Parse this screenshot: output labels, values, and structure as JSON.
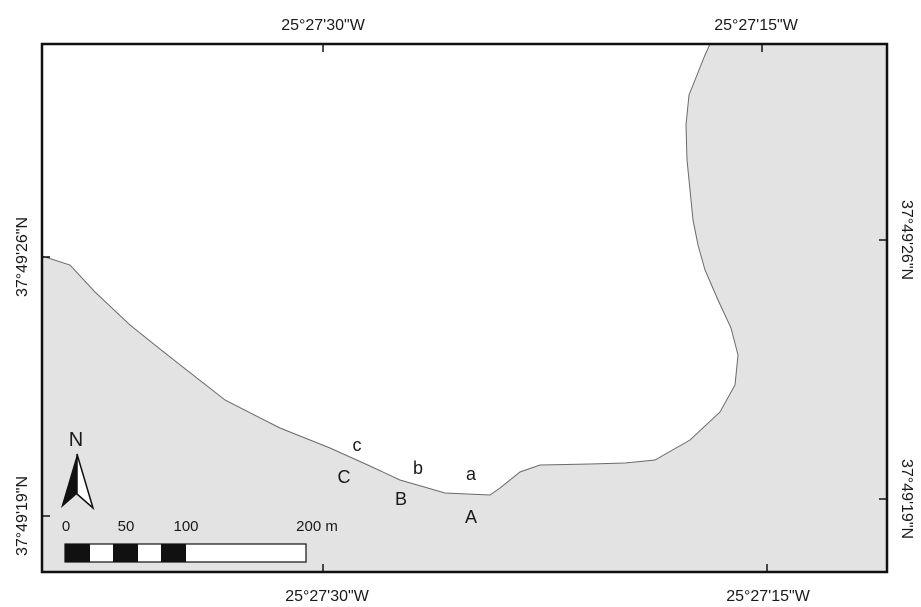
{
  "map": {
    "longitude_labels": {
      "top": [
        "25°27'30\"W",
        "25°27'15\"W"
      ],
      "bottom": [
        "25°27'30\"W",
        "25°27'15\"W"
      ]
    },
    "latitude_labels": {
      "left": [
        "37°49'26\"N",
        "37°49'19\"N"
      ],
      "right": [
        "37°49'26\"N",
        "37°49'19\"N"
      ]
    },
    "colors": {
      "land": "#e3e3e3",
      "water": "#ffffff",
      "coastline": "#6a6a6a",
      "frame": "#111111"
    },
    "points": {
      "upper": [
        "c",
        "b",
        "a"
      ],
      "lower": [
        "C",
        "B",
        "A"
      ]
    },
    "north_arrow_label": "N",
    "scale_bar": {
      "labels": [
        "0",
        "50",
        "100",
        "200 m"
      ]
    }
  }
}
